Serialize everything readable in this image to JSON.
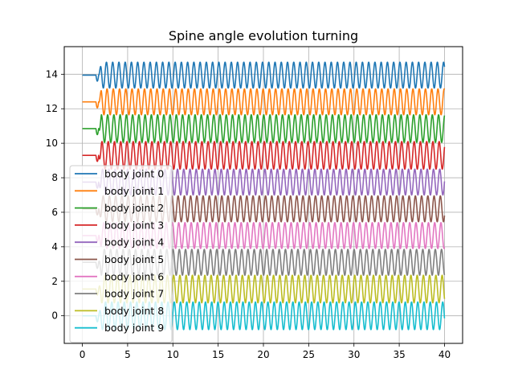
{
  "chart_data": {
    "type": "line",
    "title": "Spine angle evolution turning",
    "xlabel": "",
    "ylabel": "",
    "xlim": [
      -2.0,
      42.0
    ],
    "ylim": [
      -1.6,
      15.6
    ],
    "xticks": [
      0,
      5,
      10,
      15,
      20,
      25,
      30,
      35,
      40
    ],
    "yticks": [
      0,
      2,
      4,
      6,
      8,
      10,
      12,
      14
    ],
    "grid": true,
    "legend_position": "lower-left",
    "signal": {
      "x_start": 0,
      "x_end": 40,
      "onset_x": 1.5,
      "frequency_hz": 1.45,
      "phase_lag_per_joint": 0.6,
      "initial_dip": 0.35
    },
    "series": [
      {
        "name": "body joint 0",
        "color": "#1f77b4",
        "offset": 13.95,
        "amplitude": 0.75
      },
      {
        "name": "body joint 1",
        "color": "#ff7f0e",
        "offset": 12.4,
        "amplitude": 0.75
      },
      {
        "name": "body joint 2",
        "color": "#2ca02c",
        "offset": 10.85,
        "amplitude": 0.8
      },
      {
        "name": "body joint 3",
        "color": "#d62728",
        "offset": 9.3,
        "amplitude": 0.8
      },
      {
        "name": "body joint 4",
        "color": "#9467bd",
        "offset": 7.75,
        "amplitude": 0.75
      },
      {
        "name": "body joint 5",
        "color": "#8c564b",
        "offset": 6.2,
        "amplitude": 0.75
      },
      {
        "name": "body joint 6",
        "color": "#e377c2",
        "offset": 4.65,
        "amplitude": 0.75
      },
      {
        "name": "body joint 7",
        "color": "#7f7f7f",
        "offset": 3.1,
        "amplitude": 0.75
      },
      {
        "name": "body joint 8",
        "color": "#bcbd22",
        "offset": 1.55,
        "amplitude": 0.8
      },
      {
        "name": "body joint 9",
        "color": "#17becf",
        "offset": 0.0,
        "amplitude": 0.8
      }
    ]
  }
}
